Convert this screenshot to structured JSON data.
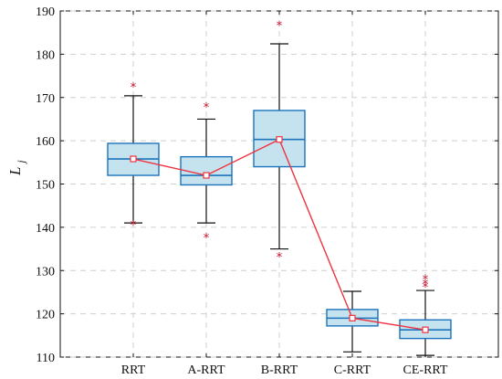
{
  "chart_data": {
    "type": "box",
    "title": "",
    "xlabel": "",
    "ylabel": "L",
    "ylabel_subscript": "j",
    "ylim": [
      110,
      190
    ],
    "yticks": [
      110,
      120,
      130,
      140,
      150,
      160,
      170,
      180,
      190
    ],
    "grid": true,
    "categories": [
      "RRT",
      "A-RRT",
      "B-RRT",
      "C-RRT",
      "CE-RRT"
    ],
    "series": [
      {
        "type": "box",
        "whisker_low": [
          141,
          141,
          135,
          111.2,
          110.4
        ],
        "q1": [
          152,
          149.8,
          154,
          117.2,
          114.3
        ],
        "median": [
          155.8,
          152,
          160.3,
          119,
          116.3
        ],
        "q3": [
          159.4,
          156.3,
          167,
          121,
          118.6
        ],
        "whisker_high": [
          170.4,
          165,
          182.4,
          125.2,
          125.4
        ],
        "outliers": [
          [
            172.5,
            140.6
          ],
          [
            167.8,
            137.7
          ],
          [
            186.7,
            133.2
          ],
          [],
          [
            126.3,
            127,
            128.1
          ]
        ]
      },
      {
        "type": "line",
        "values": [
          155.8,
          152,
          160.3,
          119,
          116.3
        ]
      }
    ],
    "colors": {
      "box_fill": "#c5e3ef",
      "box_edge": "#1c74bc",
      "whisker": "#111111",
      "outlier": "#c8102e",
      "mean_line": "#ef3340",
      "grid": "#cfcfcf",
      "axis": "#111111"
    }
  }
}
